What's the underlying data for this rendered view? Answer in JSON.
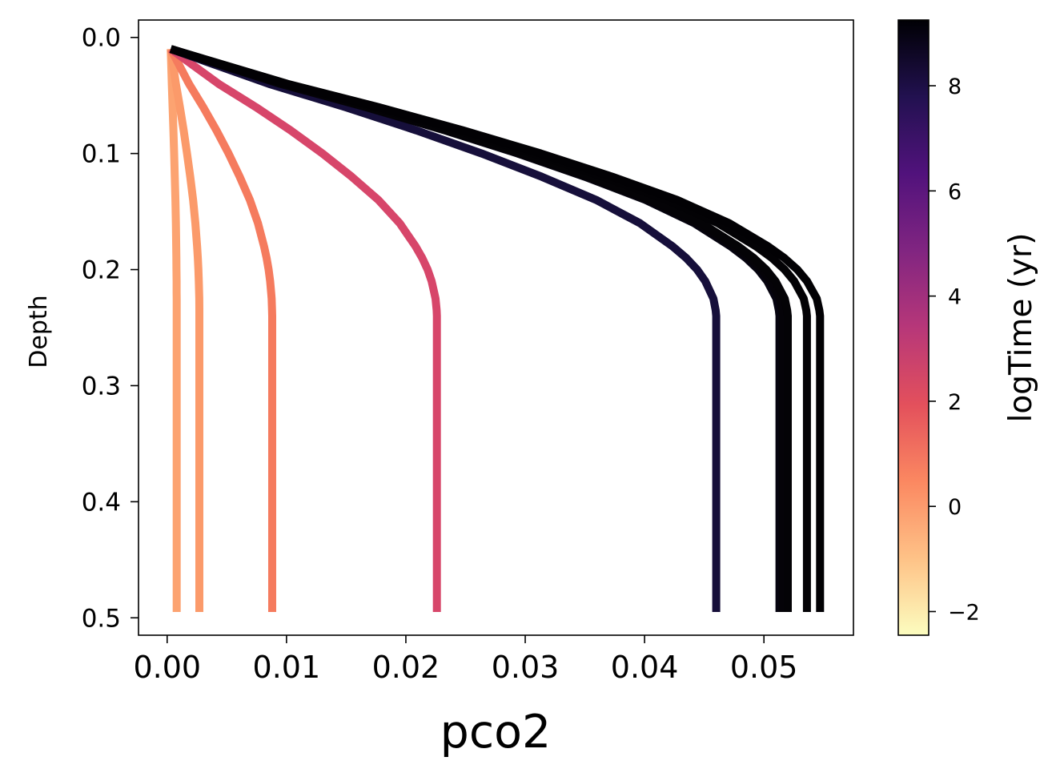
{
  "chart_data": {
    "type": "line",
    "title": "",
    "xlabel": "pco2",
    "ylabel": "Depth",
    "xlim": [
      -0.0024,
      0.0575
    ],
    "ylim": [
      0.515,
      -0.015
    ],
    "y_inverted": true,
    "xticks": [
      0.0,
      0.01,
      0.02,
      0.03,
      0.04,
      0.05
    ],
    "xtick_labels": [
      "0.00",
      "0.01",
      "0.02",
      "0.03",
      "0.04",
      "0.05"
    ],
    "yticks": [
      0.0,
      0.1,
      0.2,
      0.3,
      0.4,
      0.5
    ],
    "ytick_labels": [
      "0.0",
      "0.1",
      "0.2",
      "0.3",
      "0.4",
      "0.5"
    ],
    "grid": false,
    "legend": "none",
    "colorbar": {
      "label": "logTime (yr)",
      "colormap": "magma_r",
      "range": [
        -2.45,
        9.25
      ],
      "ticks": [
        -2,
        0,
        2,
        4,
        6,
        8
      ],
      "tick_labels": [
        "−2",
        "0",
        "2",
        "4",
        "6",
        "8"
      ],
      "stops": [
        "#fcfdbf",
        "#fec287",
        "#fb8861",
        "#e3505c",
        "#b73779",
        "#812581",
        "#51127c",
        "#221150",
        "#000004"
      ]
    },
    "depths": [
      0.01,
      0.02,
      0.04,
      0.06,
      0.08,
      0.1,
      0.12,
      0.14,
      0.16,
      0.18,
      0.19,
      0.2,
      0.21,
      0.22,
      0.225,
      0.235,
      0.24,
      0.26,
      0.3,
      0.35,
      0.4,
      0.45,
      0.495
    ],
    "profile_shape": [
      0.0,
      0.06,
      0.18,
      0.32,
      0.45,
      0.57,
      0.68,
      0.78,
      0.86,
      0.92,
      0.945,
      0.965,
      0.98,
      0.99,
      0.995,
      0.999,
      1.0,
      1.0,
      1.0,
      1.0,
      1.0,
      1.0,
      1.0
    ],
    "surface_pco2": 0.0003,
    "series": [
      {
        "color": "#fca371",
        "log_time": 0.3,
        "max_pco2": 0.0008
      },
      {
        "color": "#fb9a6a",
        "log_time": 0.6,
        "max_pco2": 0.0027
      },
      {
        "color": "#f57b5e",
        "log_time": 1.2,
        "max_pco2": 0.0088
      },
      {
        "color": "#d7466a",
        "log_time": 2.6,
        "max_pco2": 0.0226
      },
      {
        "color": "#160f3a",
        "log_time": 8.0,
        "max_pco2": 0.046
      },
      {
        "color": "#060410",
        "log_time": 9.0,
        "max_pco2": 0.0513
      },
      {
        "color": "#050308",
        "log_time": 9.05,
        "max_pco2": 0.0516
      },
      {
        "color": "#040306",
        "log_time": 9.1,
        "max_pco2": 0.052
      },
      {
        "color": "#030205",
        "log_time": 9.15,
        "max_pco2": 0.0536
      },
      {
        "color": "#020104",
        "log_time": 9.2,
        "max_pco2": 0.0547
      }
    ]
  }
}
